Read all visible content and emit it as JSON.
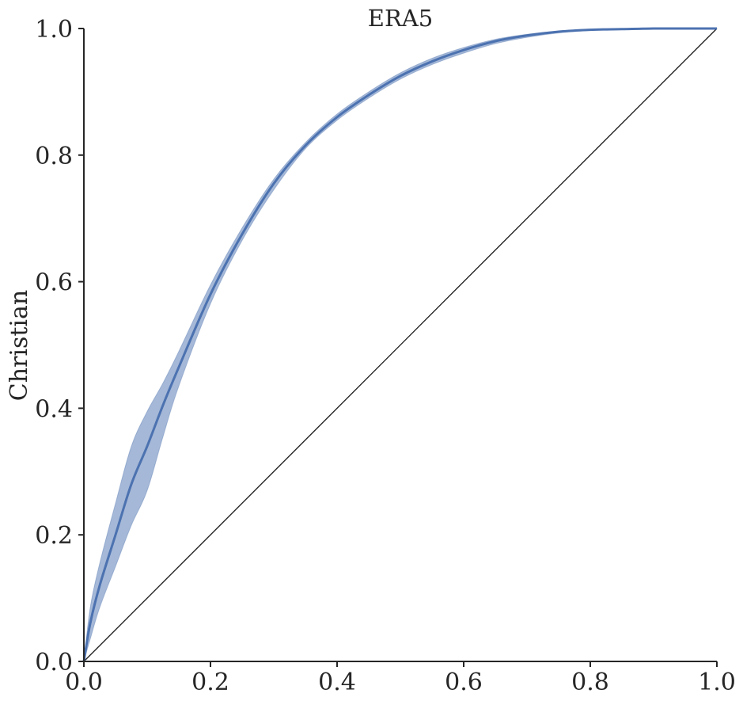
{
  "chart_data": {
    "type": "line",
    "title": "ERA5",
    "xlabel": "",
    "ylabel": "Christian",
    "xlim": [
      0.0,
      1.0
    ],
    "ylim": [
      0.0,
      1.0
    ],
    "grid": false,
    "x_ticks": [
      "0.0",
      "0.2",
      "0.4",
      "0.6",
      "0.8",
      "1.0"
    ],
    "y_ticks": [
      "0.0",
      "0.2",
      "0.4",
      "0.6",
      "0.8",
      "1.0"
    ],
    "colors": {
      "series": "#4c72b0",
      "band": "#4c72b0",
      "diagonal": "#1a1a1a",
      "axes": "#262626"
    },
    "series": [
      {
        "x": [
          0.0,
          0.01,
          0.025,
          0.05,
          0.075,
          0.1,
          0.125,
          0.15,
          0.2,
          0.25,
          0.3,
          0.35,
          0.4,
          0.45,
          0.5,
          0.55,
          0.6,
          0.65,
          0.7,
          0.75,
          0.8,
          0.85,
          0.9,
          0.95,
          1.0
        ],
        "y": [
          0.0,
          0.06,
          0.12,
          0.2,
          0.28,
          0.34,
          0.405,
          0.465,
          0.58,
          0.675,
          0.755,
          0.815,
          0.86,
          0.895,
          0.925,
          0.948,
          0.966,
          0.98,
          0.989,
          0.995,
          0.998,
          0.999,
          1.0,
          1.0,
          1.0
        ],
        "y_lower": [
          0.0,
          0.035,
          0.085,
          0.15,
          0.215,
          0.27,
          0.355,
          0.435,
          0.565,
          0.665,
          0.745,
          0.81,
          0.855,
          0.89,
          0.92,
          0.943,
          0.961,
          0.976,
          0.986,
          0.993,
          0.997,
          0.999,
          1.0,
          1.0,
          1.0
        ],
        "y_upper": [
          0.0,
          0.085,
          0.155,
          0.25,
          0.34,
          0.395,
          0.44,
          0.49,
          0.595,
          0.685,
          0.762,
          0.82,
          0.865,
          0.9,
          0.93,
          0.953,
          0.97,
          0.983,
          0.991,
          0.996,
          0.999,
          1.0,
          1.0,
          1.0,
          1.0
        ]
      },
      {
        "x": [
          0.0,
          1.0
        ],
        "y": [
          0.0,
          1.0
        ]
      }
    ]
  }
}
